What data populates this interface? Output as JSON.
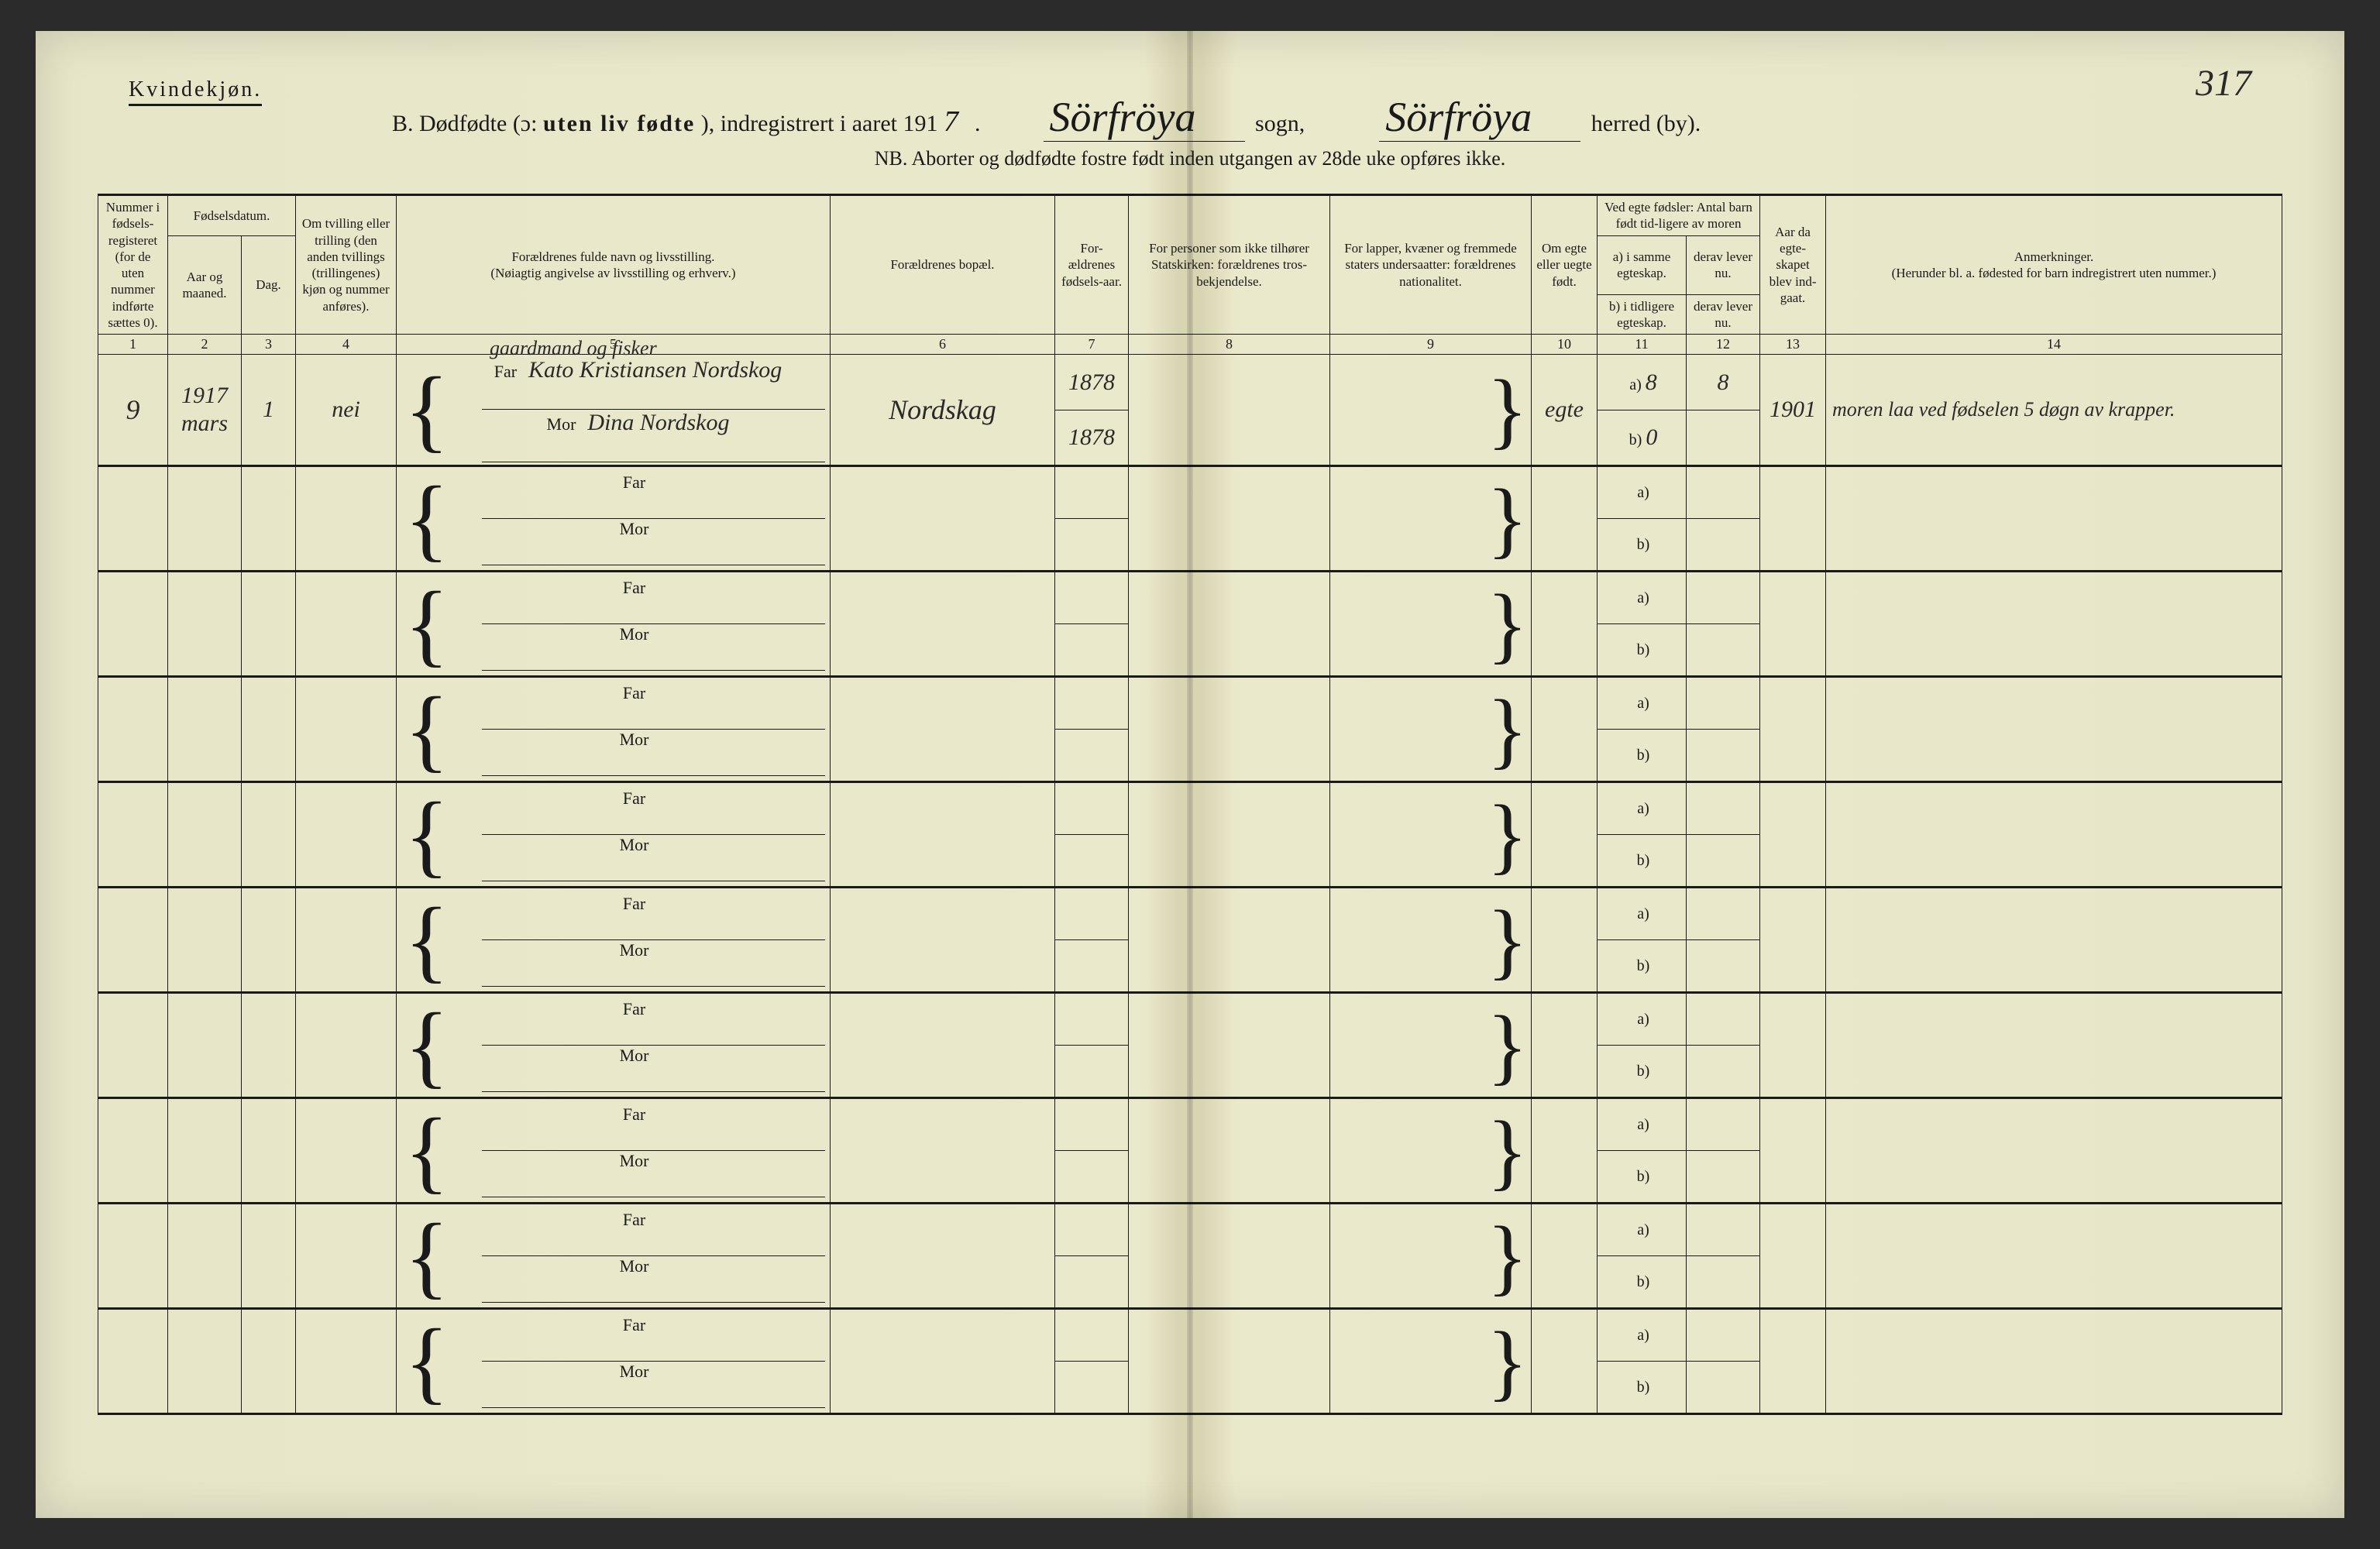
{
  "page_number_hand": "317",
  "gender_label": "Kvindekjøn.",
  "title": {
    "prefix": "B. Dødfødte (ɔ: ",
    "spaced_bold": "uten liv fødte",
    "mid": "), indregistrert i aaret 191",
    "year_hand": "7",
    "sogn_hand": "Sörfröya",
    "sogn_label": " sogn,",
    "herred_hand": "Sörfröya",
    "herred_label": " herred (by)."
  },
  "nb_line": "NB.  Aborter og dødfødte fostre født inden utgangen av 28de uke opføres ikke.",
  "headers": {
    "c1": "Nummer i fødsels-registeret (for de uten nummer indførte sættes 0).",
    "c2_top": "Fødselsdatum.",
    "c2a": "Aar og maaned.",
    "c2b": "Dag.",
    "c4": "Om tvilling eller trilling (den anden tvillings (trillingenes) kjøn og nummer anføres).",
    "c5": "Forældrenes fulde navn og livsstilling.\n(Nøiagtig angivelse av livsstilling og erhverv.)",
    "c6": "Forældrenes bopæl.",
    "c7": "For-ældrenes fødsels-aar.",
    "c8": "For personer som ikke tilhører Statskirken: forældrenes tros-bekjendelse.",
    "c9": "For lapper, kvæner og fremmede staters undersaatter: forældrenes nationalitet.",
    "c10": "Om egte eller uegte født.",
    "c11_top": "Ved egte fødsler: Antal barn født tid-ligere av moren",
    "c11a": "a) i samme egteskap.",
    "c11b": "b) i tidligere egteskap.",
    "c12a": "derav lever nu.",
    "c12b": "derav lever nu.",
    "c13": "Aar da egte-skapet blev ind-gaat.",
    "c14": "Anmerkninger.\n(Herunder bl. a. fødested for barn indregistrert uten nummer.)"
  },
  "colnums": [
    "1",
    "2",
    "3",
    "4",
    "5",
    "6",
    "7",
    "8",
    "9",
    "10",
    "11",
    "12",
    "13",
    "14"
  ],
  "far_label": "Far",
  "mor_label": "Mor",
  "ab_a": "a)",
  "ab_b": "b)",
  "entry": {
    "num": "9",
    "year_month": "1917\nmars",
    "day": "1",
    "twin": "nei",
    "occupation": "gaardmand og fisker",
    "father": "Kato Kristiansen Nordskog",
    "mother": "Dina Nordskog",
    "residence": "Nordskag",
    "father_birth": "1878",
    "mother_birth": "1878",
    "legit": "egte",
    "a_same": "8",
    "a_now": "8",
    "b_prev": "0",
    "marriage_year": "1901",
    "remark": "moren laa ved fødselen 5 døgn av krapper."
  },
  "blank_rows": 9,
  "colors": {
    "paper": "#e8e6c8",
    "ink": "#1a1a1a",
    "hand": "#2a2a2a"
  }
}
